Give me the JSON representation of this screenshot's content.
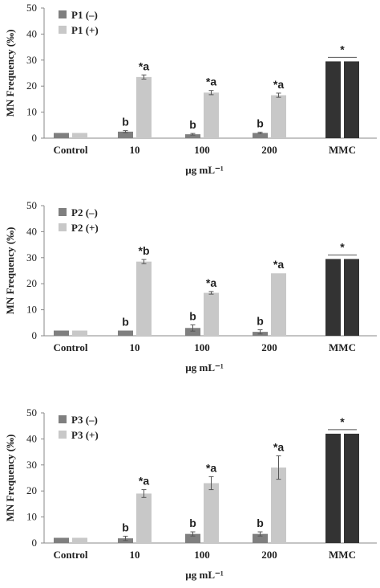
{
  "chart_data": [
    {
      "type": "bar",
      "categories": [
        "Control",
        "10",
        "100",
        "200",
        "MMC"
      ],
      "xlabel": "µg mL⁻¹",
      "ylabel": "MN Frequency (‰)",
      "ylim": [
        0,
        50
      ],
      "yticks": [
        0,
        10,
        20,
        30,
        40,
        50
      ],
      "legend_position": "top-left",
      "series": [
        {
          "name": "P1 (–)",
          "color": "#7f7f7f",
          "values": [
            2,
            2.5,
            1.5,
            2,
            29.5
          ],
          "errors": [
            0,
            0.4,
            0.3,
            0.3,
            0
          ],
          "labels": [
            "",
            "b",
            "b",
            "b",
            ""
          ]
        },
        {
          "name": "P1 (+)",
          "color": "#c8c8c8",
          "values": [
            2,
            23.5,
            17.5,
            16.5,
            29.5
          ],
          "errors": [
            0,
            0.8,
            0.8,
            0.8,
            0
          ],
          "labels": [
            "",
            "*a",
            "*a",
            "*a",
            ""
          ]
        }
      ],
      "mmc_color": "#333333",
      "mmc_label": "*"
    },
    {
      "type": "bar",
      "categories": [
        "Control",
        "10",
        "100",
        "200",
        "MMC"
      ],
      "xlabel": "µg mL⁻¹",
      "ylabel": "MN Frequency (‰)",
      "ylim": [
        0,
        50
      ],
      "yticks": [
        0,
        10,
        20,
        30,
        40,
        50
      ],
      "legend_position": "top-left",
      "series": [
        {
          "name": "P2 (–)",
          "color": "#7f7f7f",
          "values": [
            2,
            2,
            3,
            1.5,
            29.5
          ],
          "errors": [
            0,
            0,
            1.2,
            0.8,
            0
          ],
          "labels": [
            "",
            "b",
            "b",
            "b",
            ""
          ]
        },
        {
          "name": "P2 (+)",
          "color": "#c8c8c8",
          "values": [
            2,
            28.5,
            16.5,
            24,
            29.5
          ],
          "errors": [
            0,
            0.8,
            0.5,
            0,
            0
          ],
          "labels": [
            "",
            "*b",
            "*a",
            "*a",
            ""
          ]
        }
      ],
      "mmc_color": "#333333",
      "mmc_label": "*"
    },
    {
      "type": "bar",
      "categories": [
        "Control",
        "10",
        "100",
        "200",
        "MMC"
      ],
      "xlabel": "µg mL⁻¹",
      "ylabel": "MN Frequency (‰)",
      "ylim": [
        0,
        50
      ],
      "yticks": [
        0,
        10,
        20,
        30,
        40,
        50
      ],
      "legend_position": "top-left",
      "series": [
        {
          "name": "P3 (–)",
          "color": "#7f7f7f",
          "values": [
            2,
            1.8,
            3.5,
            3.5,
            42
          ],
          "errors": [
            0,
            0.8,
            0.8,
            0.8,
            0
          ],
          "labels": [
            "",
            "b",
            "b",
            "b",
            ""
          ]
        },
        {
          "name": "P3 (+)",
          "color": "#c8c8c8",
          "values": [
            2,
            19,
            23,
            29,
            42
          ],
          "errors": [
            0,
            1.5,
            2.5,
            4.5,
            0
          ],
          "labels": [
            "",
            "*a",
            "*a",
            "*a",
            ""
          ]
        }
      ],
      "mmc_color": "#333333",
      "mmc_label": "*"
    }
  ]
}
